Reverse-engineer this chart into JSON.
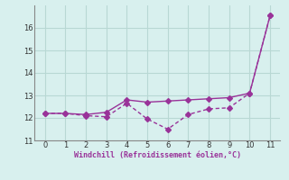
{
  "x": [
    0,
    1,
    2,
    3,
    4,
    5,
    6,
    7,
    8,
    9,
    10,
    11
  ],
  "line1_y": [
    12.2,
    12.2,
    12.15,
    12.25,
    12.8,
    12.7,
    12.75,
    12.8,
    12.85,
    12.9,
    13.1,
    16.55
  ],
  "line2_y": [
    12.2,
    12.2,
    12.1,
    12.05,
    12.65,
    11.95,
    11.5,
    12.15,
    12.4,
    12.45,
    13.1,
    16.55
  ],
  "line_color": "#993399",
  "bg_color": "#d8f0ee",
  "grid_color": "#b8d8d4",
  "axis_color": "#888888",
  "xlabel": "Windchill (Refroidissement éolien,°C)",
  "xlabel_color": "#993399",
  "xlim": [
    -0.5,
    11.5
  ],
  "ylim": [
    11.0,
    17.0
  ],
  "xticks": [
    0,
    1,
    2,
    3,
    4,
    5,
    6,
    7,
    8,
    9,
    10,
    11
  ],
  "yticks": [
    11,
    12,
    13,
    14,
    15,
    16
  ],
  "marker": "D",
  "markersize": 3.0,
  "linewidth": 1.0
}
